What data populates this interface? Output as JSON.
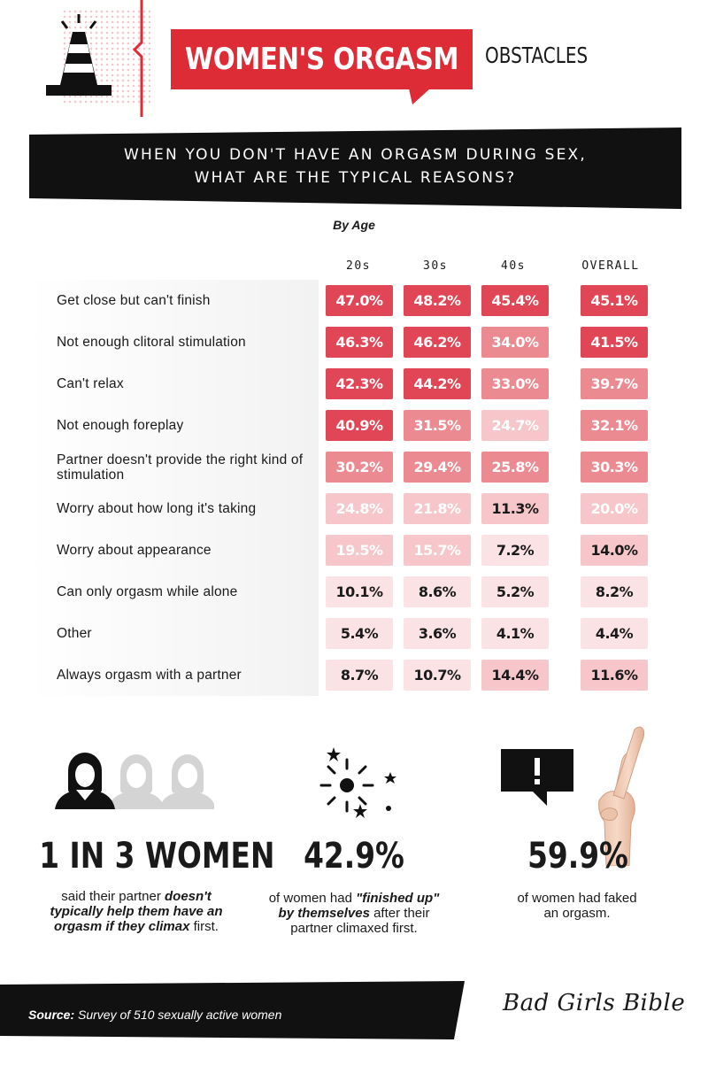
{
  "header": {
    "title": "WOMEN'S ORGASM",
    "subtitle": "OBSTACLES"
  },
  "question": {
    "line1": "WHEN YOU DON'T HAVE AN ORGASM DURING SEX,",
    "line2": "WHAT ARE THE TYPICAL REASONS?"
  },
  "by_age_label": "By Age",
  "chart_data": {
    "type": "table",
    "title": "WHEN YOU DON'T HAVE AN ORGASM DURING SEX, WHAT ARE THE TYPICAL REASONS?",
    "subtitle": "By Age",
    "columns": [
      "20s",
      "30s",
      "40s",
      "OVERALL"
    ],
    "rows": [
      {
        "label": "Get close but can't finish",
        "values": [
          47.0,
          48.2,
          45.4,
          45.1
        ]
      },
      {
        "label": "Not enough clitoral stimulation",
        "values": [
          46.3,
          46.2,
          34.0,
          41.5
        ]
      },
      {
        "label": "Can't relax",
        "values": [
          42.3,
          44.2,
          33.0,
          39.7
        ]
      },
      {
        "label": "Not enough foreplay",
        "values": [
          40.9,
          31.5,
          24.7,
          32.1
        ]
      },
      {
        "label": "Partner doesn't provide the right kind of stimulation",
        "values": [
          30.2,
          29.4,
          25.8,
          30.3
        ]
      },
      {
        "label": "Worry about how long it's taking",
        "values": [
          24.8,
          21.8,
          11.3,
          20.0
        ]
      },
      {
        "label": "Worry about appearance",
        "values": [
          19.5,
          15.7,
          7.2,
          14.0
        ]
      },
      {
        "label": "Can only orgasm while alone",
        "values": [
          10.1,
          8.6,
          5.2,
          8.2
        ]
      },
      {
        "label": "Other",
        "values": [
          5.4,
          3.6,
          4.1,
          4.4
        ]
      },
      {
        "label": "Always orgasm with a partner",
        "values": [
          8.7,
          10.7,
          14.4,
          11.6
        ]
      }
    ],
    "unit": "%",
    "colors": {
      "high": "#e04656",
      "mid": "#ec8a91",
      "low": "#f6c6ca",
      "lowest": "#fbe3e5",
      "text_dark": "#1a1a1a",
      "text_light": "#ffffff"
    }
  },
  "stats": [
    {
      "value": "1 IN 3 WOMEN",
      "text_plain1": "said their partner ",
      "text_em": "doesn't typically help them have an orgasm if they climax",
      "text_plain2": " first."
    },
    {
      "value": "42.9%",
      "text_plain1": "of women had ",
      "text_em": "\"finished up\" by themselves",
      "text_plain2": " after their partner climaxed first."
    },
    {
      "value": "59.9%",
      "text_plain1": "of women had faked an orgasm.",
      "text_em": "",
      "text_plain2": ""
    }
  ],
  "stat_icons": [
    "women-silhouettes-icon",
    "sparkle-burst-icon",
    "crossed-fingers-icon",
    "exclamation-bubble-icon",
    "traffic-cone-icon"
  ],
  "footer": {
    "source_label": "Source:",
    "source_text": " Survey of 510 sexually active women",
    "brand": "Bad Girls Bible"
  },
  "colors": {
    "accent": "#de2c37",
    "dark": "#111111"
  }
}
